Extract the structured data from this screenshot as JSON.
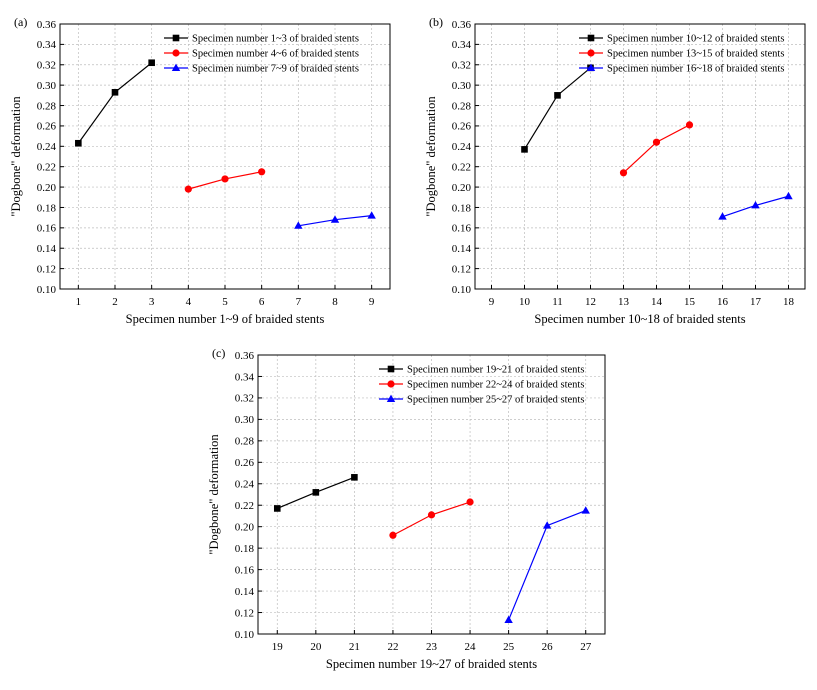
{
  "chart_data": [
    {
      "type": "line",
      "panel_label": "(a)",
      "xlabel": "Specimen number 1~9 of braided stents",
      "ylabel": "\"Dogbone\" deformation",
      "xlim": [
        0.5,
        9.5
      ],
      "ylim": [
        0.1,
        0.36
      ],
      "x_ticks": [
        "1",
        "2",
        "3",
        "4",
        "5",
        "6",
        "7",
        "8",
        "9"
      ],
      "y_ticks": [
        "0.10",
        "0.12",
        "0.14",
        "0.16",
        "0.18",
        "0.20",
        "0.22",
        "0.24",
        "0.26",
        "0.28",
        "0.30",
        "0.32",
        "0.34",
        "0.36"
      ],
      "grid": true,
      "legend_position": "top-right",
      "series": [
        {
          "name": "Specimen number 1~3 of braided stents",
          "color": "#000000",
          "marker": "square",
          "x": [
            1,
            2,
            3
          ],
          "y": [
            0.243,
            0.293,
            0.322
          ]
        },
        {
          "name": "Specimen number 4~6 of braided stents",
          "color": "#ff0000",
          "marker": "circle",
          "x": [
            4,
            5,
            6
          ],
          "y": [
            0.198,
            0.208,
            0.215
          ]
        },
        {
          "name": "Specimen number 7~9 of braided stents",
          "color": "#0000ff",
          "marker": "triangle",
          "x": [
            7,
            8,
            9
          ],
          "y": [
            0.162,
            0.168,
            0.172
          ]
        }
      ]
    },
    {
      "type": "line",
      "panel_label": "(b)",
      "xlabel": "Specimen number 10~18 of braided stents",
      "ylabel": "\"Dogbone\" deformation",
      "xlim": [
        8.5,
        18.5
      ],
      "ylim": [
        0.1,
        0.36
      ],
      "x_ticks": [
        "9",
        "10",
        "11",
        "12",
        "13",
        "14",
        "15",
        "16",
        "17",
        "18"
      ],
      "y_ticks": [
        "0.10",
        "0.12",
        "0.14",
        "0.16",
        "0.18",
        "0.20",
        "0.22",
        "0.24",
        "0.26",
        "0.28",
        "0.30",
        "0.32",
        "0.34",
        "0.36"
      ],
      "grid": true,
      "legend_position": "top-right",
      "series": [
        {
          "name": "Specimen number 10~12 of braided stents",
          "color": "#000000",
          "marker": "square",
          "x": [
            10,
            11,
            12
          ],
          "y": [
            0.237,
            0.29,
            0.317
          ]
        },
        {
          "name": "Specimen number 13~15 of braided stents",
          "color": "#ff0000",
          "marker": "circle",
          "x": [
            13,
            14,
            15
          ],
          "y": [
            0.214,
            0.244,
            0.261
          ]
        },
        {
          "name": "Specimen number 16~18 of braided stents",
          "color": "#0000ff",
          "marker": "triangle",
          "x": [
            16,
            17,
            18
          ],
          "y": [
            0.171,
            0.182,
            0.191
          ]
        }
      ]
    },
    {
      "type": "line",
      "panel_label": "(c)",
      "xlabel": "Specimen number 19~27 of braided stents",
      "ylabel": "\"Dogbone\" deformation",
      "xlim": [
        18.5,
        27.5
      ],
      "ylim": [
        0.1,
        0.36
      ],
      "x_ticks": [
        "19",
        "20",
        "21",
        "22",
        "23",
        "24",
        "25",
        "26",
        "27"
      ],
      "y_ticks": [
        "0.10",
        "0.12",
        "0.14",
        "0.16",
        "0.18",
        "0.20",
        "0.22",
        "0.24",
        "0.26",
        "0.28",
        "0.30",
        "0.32",
        "0.34",
        "0.36"
      ],
      "grid": true,
      "legend_position": "top-right",
      "series": [
        {
          "name": "Specimen number 19~21 of braided stents",
          "color": "#000000",
          "marker": "square",
          "x": [
            19,
            20,
            21
          ],
          "y": [
            0.217,
            0.232,
            0.246
          ]
        },
        {
          "name": "Specimen number 22~24 of braided stents",
          "color": "#ff0000",
          "marker": "circle",
          "x": [
            22,
            23,
            24
          ],
          "y": [
            0.192,
            0.211,
            0.223
          ]
        },
        {
          "name": "Specimen number 25~27 of braided stents",
          "color": "#0000ff",
          "marker": "triangle",
          "x": [
            25,
            26,
            27
          ],
          "y": [
            0.113,
            0.201,
            0.215
          ]
        }
      ]
    }
  ]
}
